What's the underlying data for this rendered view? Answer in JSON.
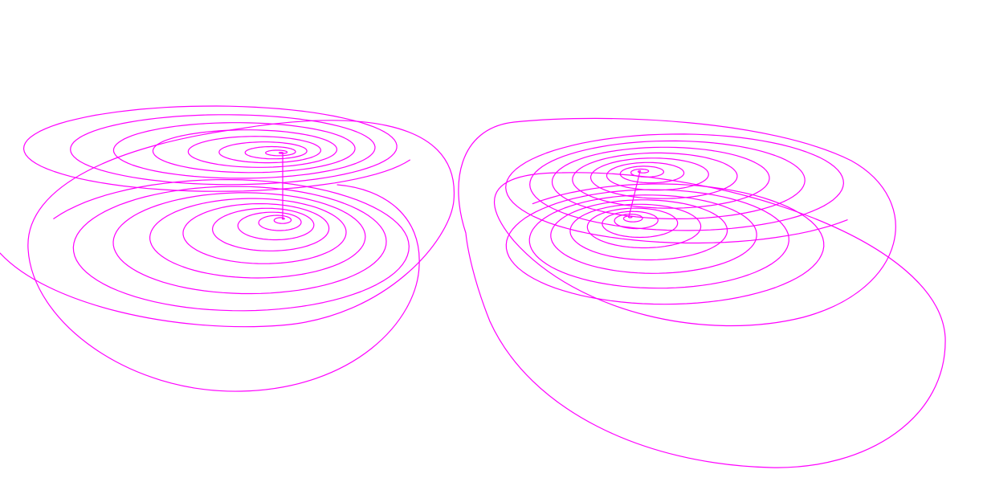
{
  "figure": {
    "background_color": "#ffffff",
    "stroke_color": "#ff00ff",
    "panels": [
      {
        "name": "left-attractor",
        "lobes": [
          {
            "name": "upper-lobe",
            "turns": 9
          },
          {
            "name": "lower-lobe",
            "turns": 9
          }
        ]
      },
      {
        "name": "right-attractor",
        "lobes": [
          {
            "name": "upper-lobe",
            "turns": 9
          },
          {
            "name": "lower-lobe",
            "turns": 9
          }
        ]
      }
    ]
  }
}
